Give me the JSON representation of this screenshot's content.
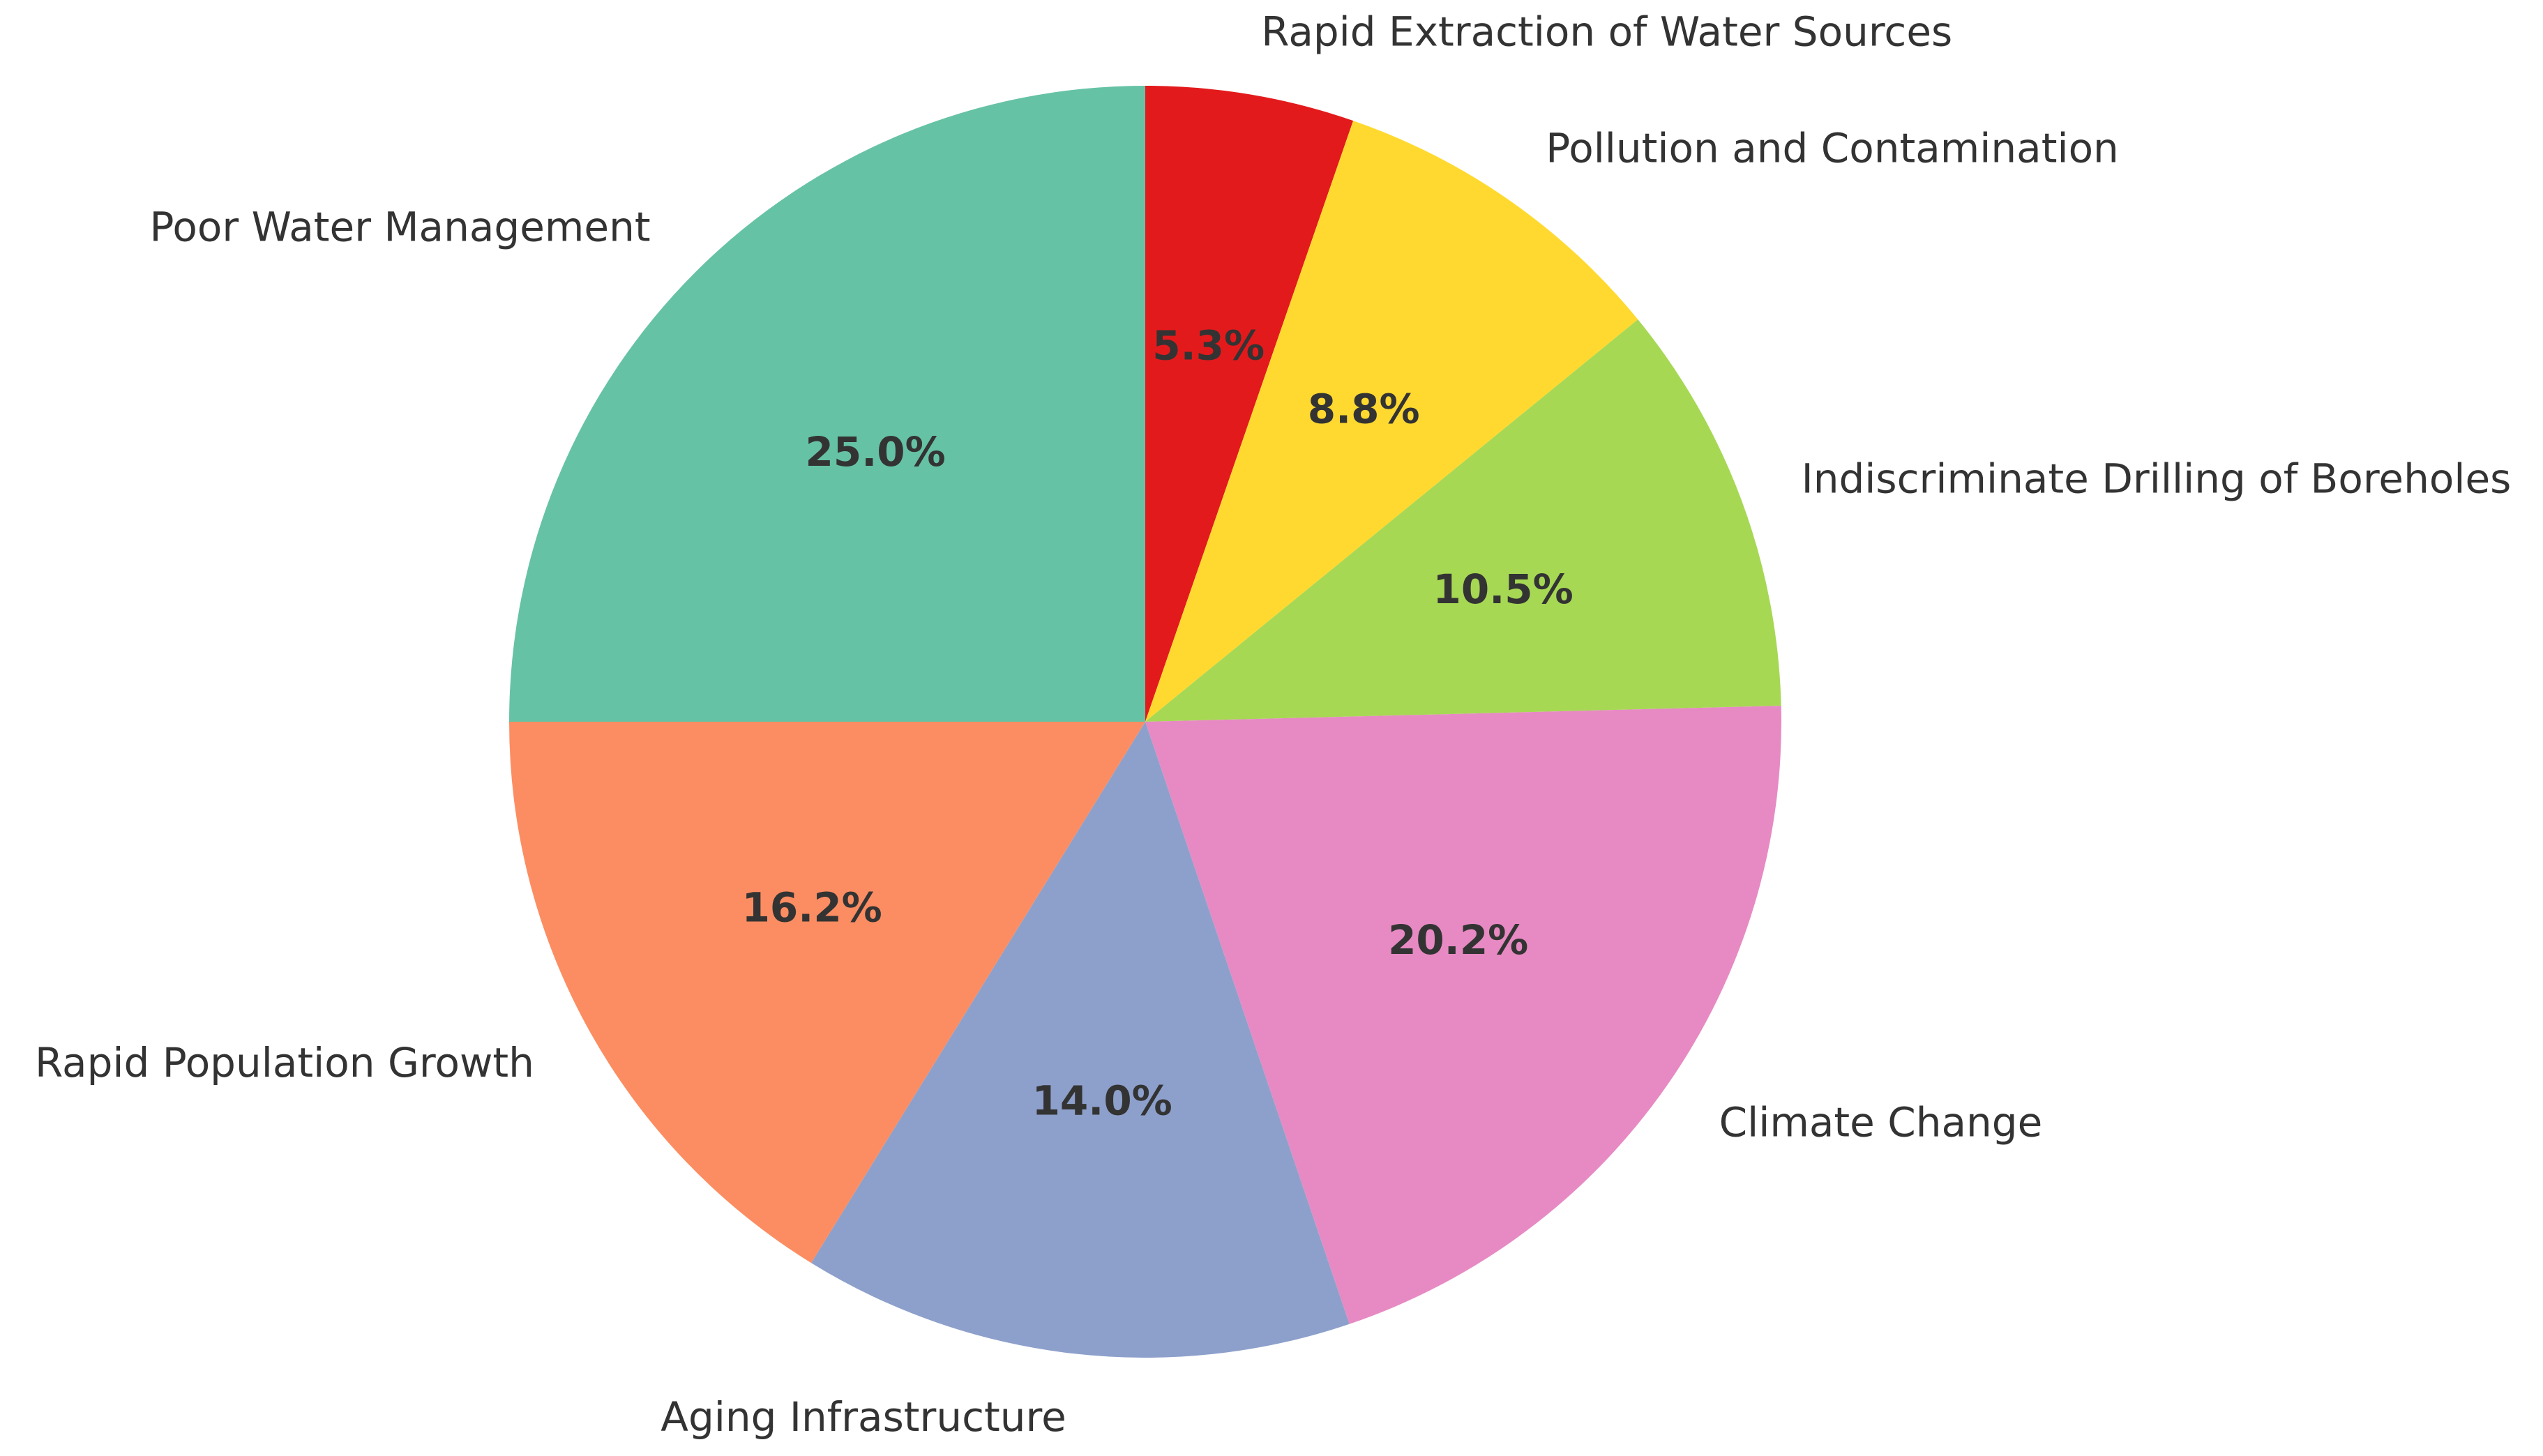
{
  "chart_data": {
    "type": "pie",
    "title": "",
    "start": "top",
    "direction": "clockwise",
    "slices": [
      {
        "label": "Rapid Extraction of Water Sources",
        "value": 5.3,
        "pct_label": "5.3%",
        "color": "#e31a1c"
      },
      {
        "label": "Pollution and Contamination",
        "value": 8.8,
        "pct_label": "8.8%",
        "color": "#ffd92f"
      },
      {
        "label": "Indiscriminate Drilling of Boreholes",
        "value": 10.5,
        "pct_label": "10.5%",
        "color": "#a6d854"
      },
      {
        "label": "Climate Change",
        "value": 20.2,
        "pct_label": "20.2%",
        "color": "#e78ac3"
      },
      {
        "label": "Aging Infrastructure",
        "value": 14.0,
        "pct_label": "14.0%",
        "color": "#8da0cb"
      },
      {
        "label": "Rapid Population Growth",
        "value": 16.2,
        "pct_label": "16.2%",
        "color": "#fc8d62"
      },
      {
        "label": "Poor Water Management",
        "value": 25.0,
        "pct_label": "25.0%",
        "color": "#66c2a5"
      }
    ]
  }
}
